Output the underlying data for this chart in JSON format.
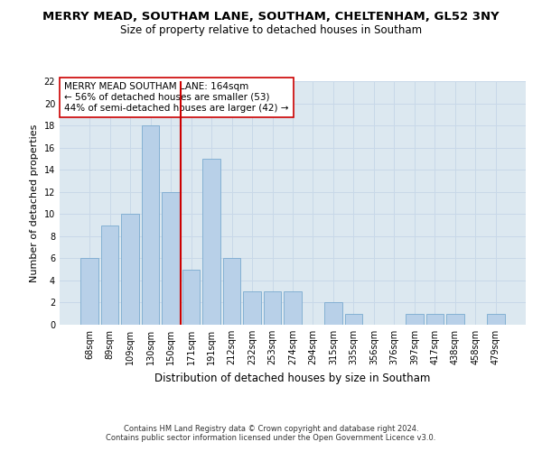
{
  "title": "MERRY MEAD, SOUTHAM LANE, SOUTHAM, CHELTENHAM, GL52 3NY",
  "subtitle": "Size of property relative to detached houses in Southam",
  "xlabel": "Distribution of detached houses by size in Southam",
  "ylabel": "Number of detached properties",
  "categories": [
    "68sqm",
    "89sqm",
    "109sqm",
    "130sqm",
    "150sqm",
    "171sqm",
    "191sqm",
    "212sqm",
    "232sqm",
    "253sqm",
    "274sqm",
    "294sqm",
    "315sqm",
    "335sqm",
    "356sqm",
    "376sqm",
    "397sqm",
    "417sqm",
    "438sqm",
    "458sqm",
    "479sqm"
  ],
  "values": [
    6,
    9,
    10,
    18,
    12,
    5,
    15,
    6,
    3,
    3,
    3,
    0,
    2,
    1,
    0,
    0,
    1,
    1,
    1,
    0,
    1
  ],
  "bar_color": "#b8d0e8",
  "bar_edge_color": "#7aaacf",
  "vline_x": 4.5,
  "vline_color": "#cc0000",
  "annotation_text": "MERRY MEAD SOUTHAM LANE: 164sqm\n← 56% of detached houses are smaller (53)\n44% of semi-detached houses are larger (42) →",
  "annotation_box_color": "#ffffff",
  "annotation_box_edge": "#cc0000",
  "ylim": [
    0,
    22
  ],
  "yticks": [
    0,
    2,
    4,
    6,
    8,
    10,
    12,
    14,
    16,
    18,
    20,
    22
  ],
  "grid_color": "#c8d8e8",
  "bg_color": "#dce8f0",
  "footer": "Contains HM Land Registry data © Crown copyright and database right 2024.\nContains public sector information licensed under the Open Government Licence v3.0.",
  "title_fontsize": 9.5,
  "subtitle_fontsize": 8.5,
  "xlabel_fontsize": 8.5,
  "ylabel_fontsize": 8,
  "tick_fontsize": 7,
  "annotation_fontsize": 7.5,
  "footer_fontsize": 6
}
